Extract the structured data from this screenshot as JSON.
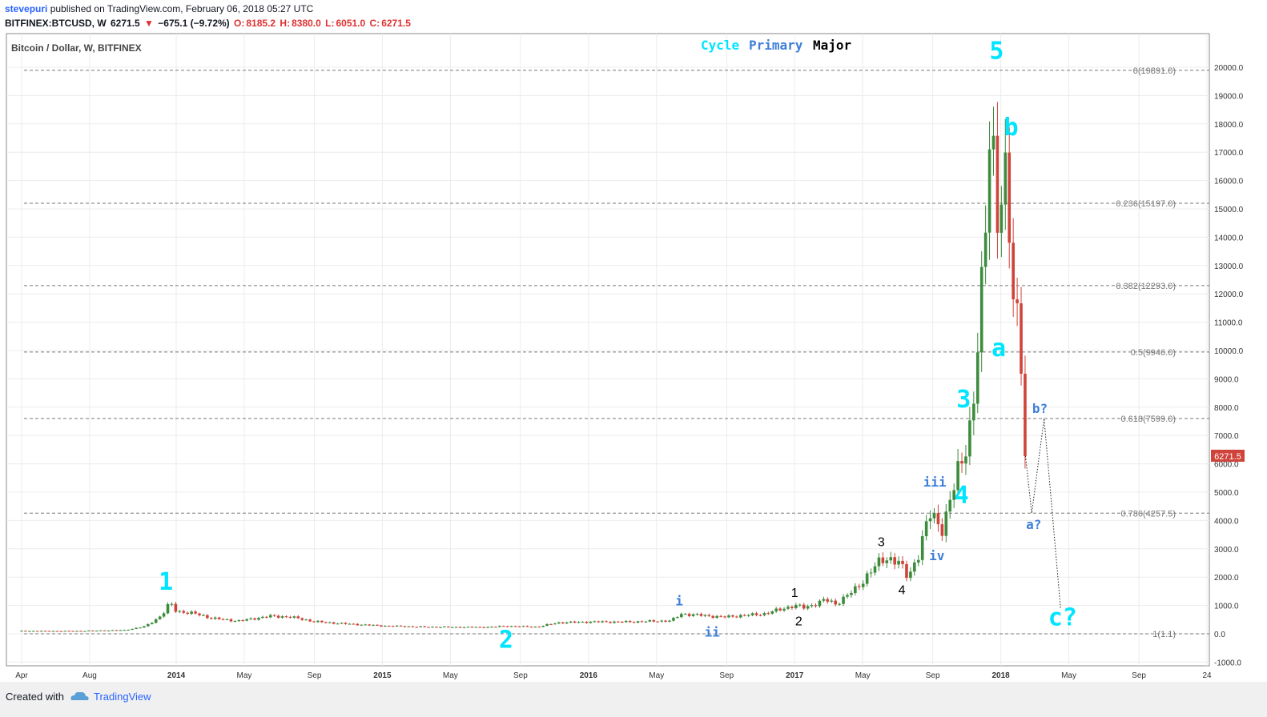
{
  "header": {
    "author": "stevepuri",
    "published": "published on TradingView.com, February 06, 2018 05:27 UTC",
    "symbol": "BITFINEX:BTCUSD, W",
    "last": "6271.5",
    "change": "−675.1 (−9.72%)",
    "o_label": "O:",
    "o_value": "8185.2",
    "h_label": "H:",
    "h_value": "8380.0",
    "l_label": "L:",
    "l_value": "6051.0",
    "c_label": "C:",
    "c_value": "6271.5"
  },
  "chart_title": "Bitcoin / Dollar, W, BITFINEX",
  "wave_legend": [
    {
      "text": "Cycle",
      "color": "#00e5ff"
    },
    {
      "text": "Primary",
      "color": "#3d7fd9"
    },
    {
      "text": "Major",
      "color": "#000000"
    }
  ],
  "price_tag": "6271.5",
  "footer": {
    "created_with": "Created with",
    "brand": "TradingView"
  },
  "colors": {
    "up": "#3d8b3d",
    "down": "#d0433a",
    "cycle": "#00e5ff",
    "primary": "#3d7fd9",
    "major": "#000000"
  },
  "chart_data": {
    "type": "candlestick",
    "timeframe": "W",
    "ylim": [
      -1000,
      21200
    ],
    "y_ticks": [
      -1000,
      0,
      1000,
      2000,
      3000,
      4000,
      5000,
      6000,
      7000,
      8000,
      9000,
      10000,
      11000,
      12000,
      13000,
      14000,
      15000,
      16000,
      17000,
      18000,
      19000,
      20000
    ],
    "y_tick_labels": [
      "-1000.0",
      "0.0",
      "1000.0",
      "2000.0",
      "3000.0",
      "4000.0",
      "5000.0",
      "6000.0",
      "7000.0",
      "8000.0",
      "9000.0",
      "10000.0",
      "11000.0",
      "12000.0",
      "13000.0",
      "14000.0",
      "15000.0",
      "16000.0",
      "17000.0",
      "18000.0",
      "19000.0",
      "20000.0"
    ],
    "x_range": [
      2013.25,
      2019.0
    ],
    "x_ticks": [
      {
        "label": "Apr",
        "t": 2013.25
      },
      {
        "label": "Aug",
        "t": 2013.58
      },
      {
        "label": "2014",
        "t": 2014.0
      },
      {
        "label": "May",
        "t": 2014.33
      },
      {
        "label": "Sep",
        "t": 2014.67
      },
      {
        "label": "2015",
        "t": 2015.0
      },
      {
        "label": "May",
        "t": 2015.33
      },
      {
        "label": "Sep",
        "t": 2015.67
      },
      {
        "label": "2016",
        "t": 2016.0
      },
      {
        "label": "May",
        "t": 2016.33
      },
      {
        "label": "Sep",
        "t": 2016.67
      },
      {
        "label": "2017",
        "t": 2017.0
      },
      {
        "label": "May",
        "t": 2017.33
      },
      {
        "label": "Sep",
        "t": 2017.67
      },
      {
        "label": "2018",
        "t": 2018.0
      },
      {
        "label": "May",
        "t": 2018.33
      },
      {
        "label": "Sep",
        "t": 2018.67
      },
      {
        "label": "24",
        "t": 2019.0
      }
    ],
    "fib_levels": [
      {
        "label": "0(19891.0)",
        "value": 19891.0
      },
      {
        "label": "0.236(15197.0)",
        "value": 15197.0
      },
      {
        "label": "0.382(12293.0)",
        "value": 12293.0
      },
      {
        "label": "0.5(9946.0)",
        "value": 9946.0
      },
      {
        "label": "0.618(7599.0)",
        "value": 7599.0
      },
      {
        "label": "0.786(4257.5)",
        "value": 4257.5
      },
      {
        "label": "1(1.1)",
        "value": 1.1
      }
    ],
    "anchors": [
      [
        2013.25,
        100
      ],
      [
        2013.5,
        95
      ],
      [
        2013.75,
        130
      ],
      [
        2013.85,
        260
      ],
      [
        2013.93,
        650
      ],
      [
        2013.97,
        1100
      ],
      [
        2014.0,
        800
      ],
      [
        2014.1,
        700
      ],
      [
        2014.17,
        550
      ],
      [
        2014.3,
        450
      ],
      [
        2014.45,
        620
      ],
      [
        2014.55,
        600
      ],
      [
        2014.67,
        430
      ],
      [
        2014.8,
        360
      ],
      [
        2015.0,
        280
      ],
      [
        2015.2,
        240
      ],
      [
        2015.5,
        230
      ],
      [
        2015.6,
        270
      ],
      [
        2015.75,
        240
      ],
      [
        2015.85,
        390
      ],
      [
        2016.0,
        420
      ],
      [
        2016.2,
        420
      ],
      [
        2016.4,
        460
      ],
      [
        2016.45,
        700
      ],
      [
        2016.55,
        650
      ],
      [
        2016.65,
        590
      ],
      [
        2016.85,
        700
      ],
      [
        2016.95,
        900
      ],
      [
        2017.0,
        1000
      ],
      [
        2017.05,
        920
      ],
      [
        2017.15,
        1200
      ],
      [
        2017.2,
        1050
      ],
      [
        2017.3,
        1600
      ],
      [
        2017.38,
        2300
      ],
      [
        2017.44,
        2700
      ],
      [
        2017.5,
        2550
      ],
      [
        2017.55,
        2000
      ],
      [
        2017.6,
        2800
      ],
      [
        2017.66,
        4300
      ],
      [
        2017.72,
        3700
      ],
      [
        2017.75,
        4500
      ],
      [
        2017.8,
        6000
      ],
      [
        2017.86,
        7400
      ],
      [
        2017.9,
        11000
      ],
      [
        2017.95,
        18600
      ],
      [
        2017.99,
        14000
      ],
      [
        2018.03,
        16300
      ],
      [
        2018.06,
        12000
      ],
      [
        2018.09,
        11200
      ],
      [
        2018.12,
        6271.5
      ]
    ],
    "wave_labels": [
      {
        "text": "1",
        "t": 2013.95,
        "y": 1550,
        "degree": "cycle"
      },
      {
        "text": "2",
        "t": 2015.6,
        "y": -500,
        "degree": "cycle"
      },
      {
        "text": "3",
        "t": 2017.82,
        "y": 8000,
        "degree": "cycle"
      },
      {
        "text": "4",
        "t": 2017.81,
        "y": 4600,
        "degree": "cycle"
      },
      {
        "text": "5",
        "t": 2017.98,
        "y": 20300,
        "degree": "cycle"
      },
      {
        "text": "a",
        "t": 2017.99,
        "y": 9800,
        "degree": "cycle"
      },
      {
        "text": "b",
        "t": 2018.05,
        "y": 17600,
        "degree": "cycle"
      },
      {
        "text": "c?",
        "t": 2018.3,
        "y": 300,
        "degree": "cycle"
      },
      {
        "text": "i",
        "t": 2016.44,
        "y": 1000,
        "degree": "primary"
      },
      {
        "text": "ii",
        "t": 2016.6,
        "y": -100,
        "degree": "primary"
      },
      {
        "text": "iii",
        "t": 2017.68,
        "y": 5200,
        "degree": "primary"
      },
      {
        "text": "iv",
        "t": 2017.69,
        "y": 2600,
        "degree": "primary"
      },
      {
        "text": "a?",
        "t": 2018.16,
        "y": 3700,
        "degree": "primary"
      },
      {
        "text": "b?",
        "t": 2018.19,
        "y": 7800,
        "degree": "primary"
      },
      {
        "text": "1",
        "t": 2017.0,
        "y": 1300,
        "degree": "major"
      },
      {
        "text": "2",
        "t": 2017.02,
        "y": 300,
        "degree": "major"
      },
      {
        "text": "3",
        "t": 2017.42,
        "y": 3100,
        "degree": "major"
      },
      {
        "text": "4",
        "t": 2017.52,
        "y": 1400,
        "degree": "major"
      }
    ],
    "projection": [
      [
        2018.12,
        6271.5
      ],
      [
        2018.15,
        4257.5
      ],
      [
        2018.21,
        7599.0
      ],
      [
        2018.29,
        900
      ]
    ]
  }
}
